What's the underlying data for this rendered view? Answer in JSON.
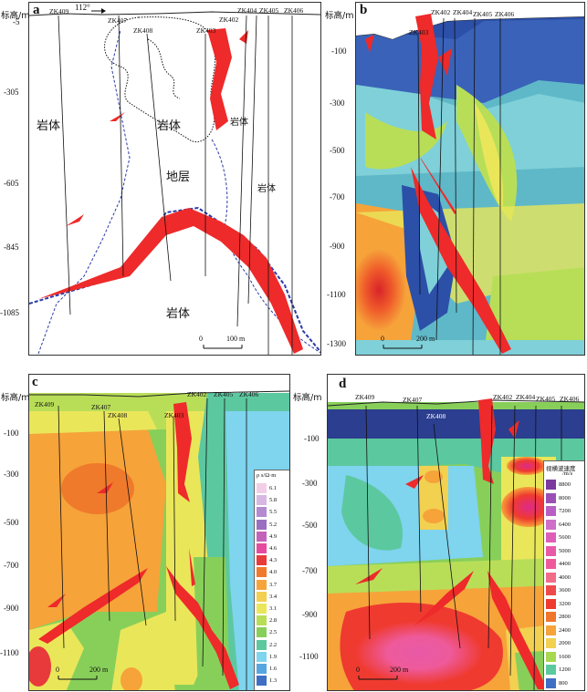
{
  "panels": {
    "a": {
      "label": "a",
      "y_axis_title": "标高/m",
      "y_ticks": [
        "-5",
        "-305",
        "-605",
        "-845",
        "-1085"
      ],
      "azimuth": "112°",
      "wells": [
        "ZK409",
        "ZK407",
        "ZK408",
        "ZK403",
        "ZK402",
        "ZK404",
        "ZK405",
        "ZK406"
      ],
      "rock_labels": {
        "rock1": "岩体",
        "rock2": "岩体",
        "rock3": "岩体",
        "rock4": "岩体",
        "rock5": "岩体",
        "stratum": "地层"
      },
      "scale": {
        "start": "0",
        "end": "100 m"
      }
    },
    "b": {
      "label": "b",
      "y_axis_title": "标高/m",
      "y_ticks": [
        "-100",
        "-300",
        "-500",
        "-700",
        "-900",
        "-1100",
        "-1300"
      ],
      "wells": [
        "ZK403",
        "ZK402",
        "ZK404",
        "ZK405",
        "ZK406"
      ],
      "scale": {
        "start": "0",
        "end": "200 m"
      }
    },
    "c": {
      "label": "c",
      "y_axis_title": "标高/m",
      "y_ticks": [
        "-100",
        "-300",
        "-500",
        "-700",
        "-900",
        "-1100"
      ],
      "wells": [
        "ZK409",
        "ZK407",
        "ZK408",
        "ZK403",
        "ZK402",
        "ZK405",
        "ZK406"
      ],
      "scale": {
        "start": "0",
        "end": "200 m"
      },
      "legend": {
        "title": "ρ s/Ω·m",
        "values": [
          "6.1",
          "5.8",
          "5.5",
          "5.2",
          "4.9",
          "4.6",
          "4.3",
          "4.0",
          "3.7",
          "3.4",
          "3.1",
          "2.8",
          "2.5",
          "2.2",
          "1.9",
          "1.6",
          "1.3"
        ],
        "colors": [
          "#f2cfe6",
          "#d7b8e2",
          "#b48ad0",
          "#9a6fc0",
          "#c263b9",
          "#e44b9f",
          "#e83a3a",
          "#ef7a2b",
          "#f6a33a",
          "#f2d050",
          "#eae65a",
          "#b8de58",
          "#88cf5a",
          "#5cc8a0",
          "#7fd4ee",
          "#58a6e0",
          "#3f6fc4"
        ]
      }
    },
    "d": {
      "label": "d",
      "y_axis_title": "标高/m",
      "y_ticks": [
        "-100",
        "-300",
        "-500",
        "-700",
        "-900",
        "-1100"
      ],
      "wells": [
        "ZK409",
        "ZK407",
        "ZK408",
        "ZK402",
        "ZK404",
        "ZK405",
        "ZK406"
      ],
      "scale": {
        "start": "0",
        "end": "200 m"
      },
      "legend": {
        "title1": "视横波速度",
        "title2": "/m/s",
        "values": [
          "8800",
          "8000",
          "7200",
          "6400",
          "5600",
          "5000",
          "4400",
          "4000",
          "3600",
          "3200",
          "2800",
          "2400",
          "2000",
          "1600",
          "1200",
          "800"
        ],
        "colors": [
          "#7a3a9e",
          "#9b4fb5",
          "#b85fc5",
          "#cf6fc8",
          "#de5fb8",
          "#e85aa8",
          "#ee5a9a",
          "#f06e88",
          "#ef4a4a",
          "#ef3a30",
          "#f0762c",
          "#f6a33a",
          "#f2d050",
          "#a8d850",
          "#5cc8a0",
          "#3f6fc4"
        ]
      }
    }
  }
}
